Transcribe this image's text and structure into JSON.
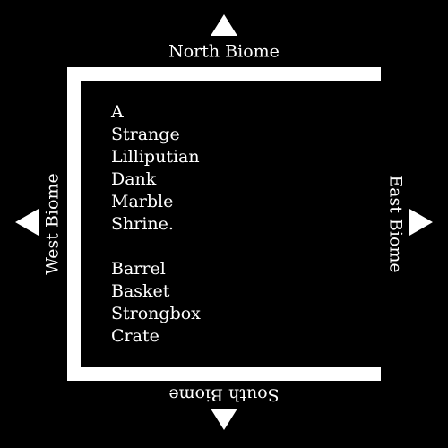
{
  "navigation": {
    "north": "North Biome",
    "south": "South Biome",
    "west": "West Biome",
    "east": "East Biome"
  },
  "room": {
    "description": [
      "A",
      "Strange",
      "Lilliputian",
      "Dank",
      "Marble",
      "Shrine."
    ],
    "items": [
      "Barrel",
      "Basket",
      "Strongbox",
      "Crate"
    ]
  },
  "colors": {
    "background": "#000000",
    "foreground": "#ffffff"
  },
  "icons": {
    "north": "triangle-up-icon",
    "south": "triangle-down-icon",
    "west": "triangle-left-icon",
    "east": "triangle-right-icon"
  }
}
